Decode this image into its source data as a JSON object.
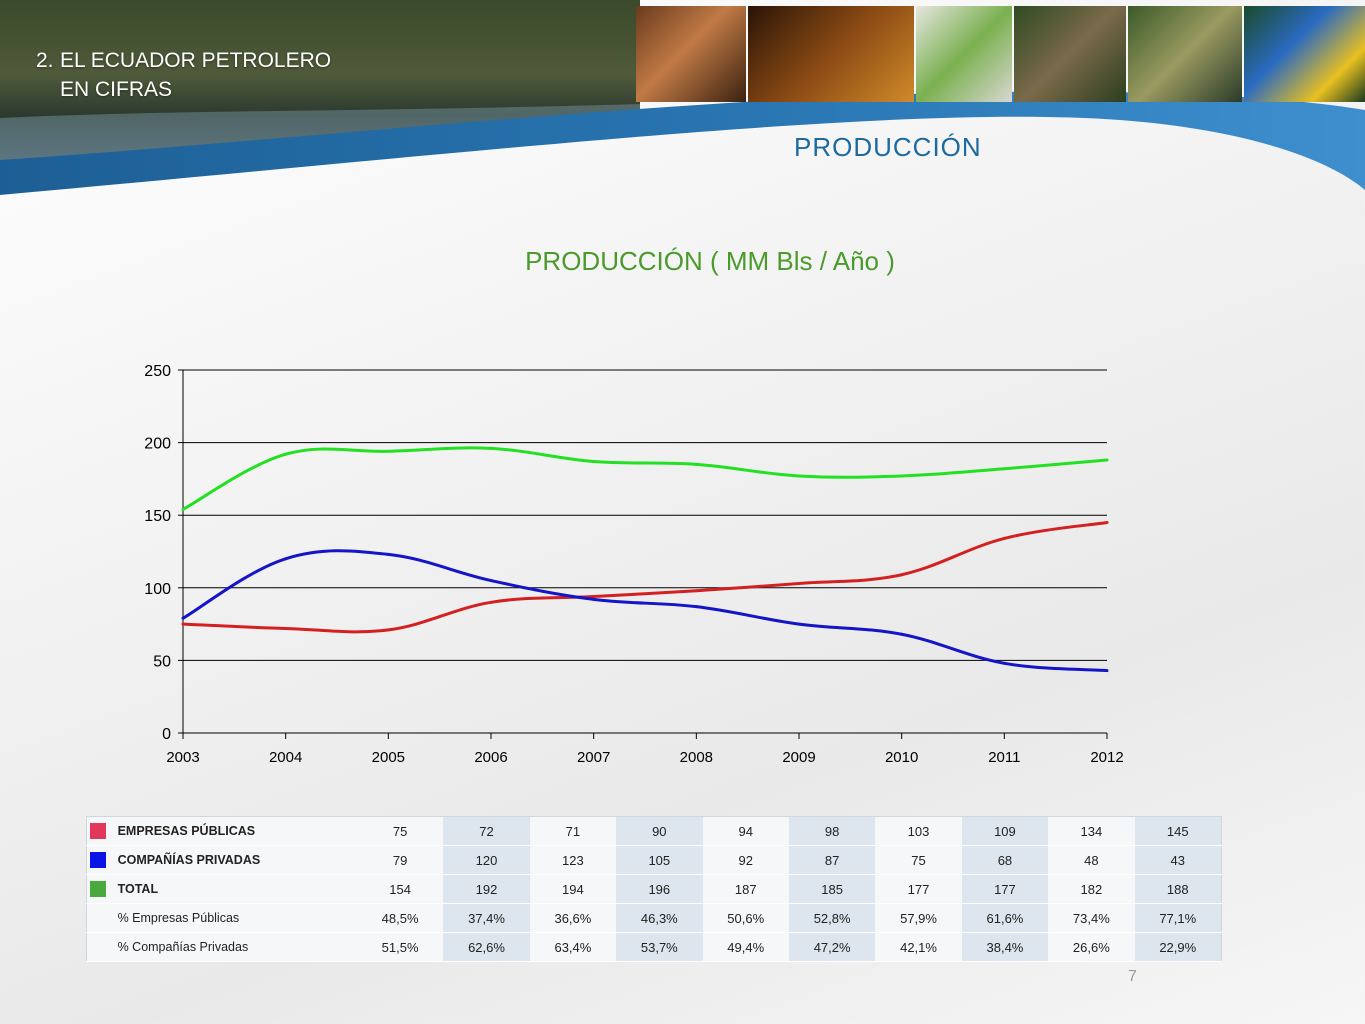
{
  "header": {
    "section_number": "2.",
    "section_line1": "EL ECUADOR PETROLERO",
    "section_line2": "EN CIFRAS",
    "page_heading": "PRODUCCIÓN"
  },
  "colors": {
    "publicas": "#d42020",
    "privadas": "#1414c8",
    "total": "#22e022",
    "heading_blue": "#1c6aa0",
    "title_green": "#4a9a2c"
  },
  "chart_data": {
    "type": "line",
    "title": "PRODUCCIÓN ( MM Bls / Año )",
    "x": [
      "2003",
      "2004",
      "2005",
      "2006",
      "2007",
      "2008",
      "2009",
      "2010",
      "2011",
      "2012"
    ],
    "series": [
      {
        "key": "publicas",
        "values": [
          75,
          72,
          71,
          90,
          94,
          98,
          103,
          109,
          134,
          145
        ]
      },
      {
        "key": "privadas",
        "values": [
          79,
          120,
          123,
          105,
          92,
          87,
          75,
          68,
          48,
          43
        ]
      },
      {
        "key": "total",
        "values": [
          154,
          192,
          194,
          196,
          187,
          185,
          177,
          177,
          182,
          188
        ]
      }
    ],
    "ylim": [
      0,
      250
    ],
    "yticks": [
      "0",
      "50",
      "100",
      "150",
      "200",
      "250"
    ],
    "grid": true,
    "legend": "table-below"
  },
  "table": {
    "rows": [
      {
        "label": "EMPRESAS PÚBLICAS",
        "swatch": "publicas",
        "values": [
          "75",
          "72",
          "71",
          "90",
          "94",
          "98",
          "103",
          "109",
          "134",
          "145"
        ]
      },
      {
        "label": "COMPAÑÍAS PRIVADAS",
        "swatch": "privadas",
        "values": [
          "79",
          "120",
          "123",
          "105",
          "92",
          "87",
          "75",
          "68",
          "48",
          "43"
        ]
      },
      {
        "label": "TOTAL",
        "swatch": "total",
        "values": [
          "154",
          "192",
          "194",
          "196",
          "187",
          "185",
          "177",
          "177",
          "182",
          "188"
        ]
      },
      {
        "label": "% Empresas Públicas",
        "swatch": "",
        "values": [
          "48,5%",
          "37,4%",
          "36,6%",
          "46,3%",
          "50,6%",
          "52,8%",
          "57,9%",
          "61,6%",
          "73,4%",
          "77,1%"
        ]
      },
      {
        "label": "% Compañías Privadas",
        "swatch": "",
        "values": [
          "51,5%",
          "62,6%",
          "63,4%",
          "53,7%",
          "49,4%",
          "47,2%",
          "42,1%",
          "38,4%",
          "26,6%",
          "22,9%"
        ]
      }
    ]
  },
  "footer": {
    "page_number": "7"
  }
}
